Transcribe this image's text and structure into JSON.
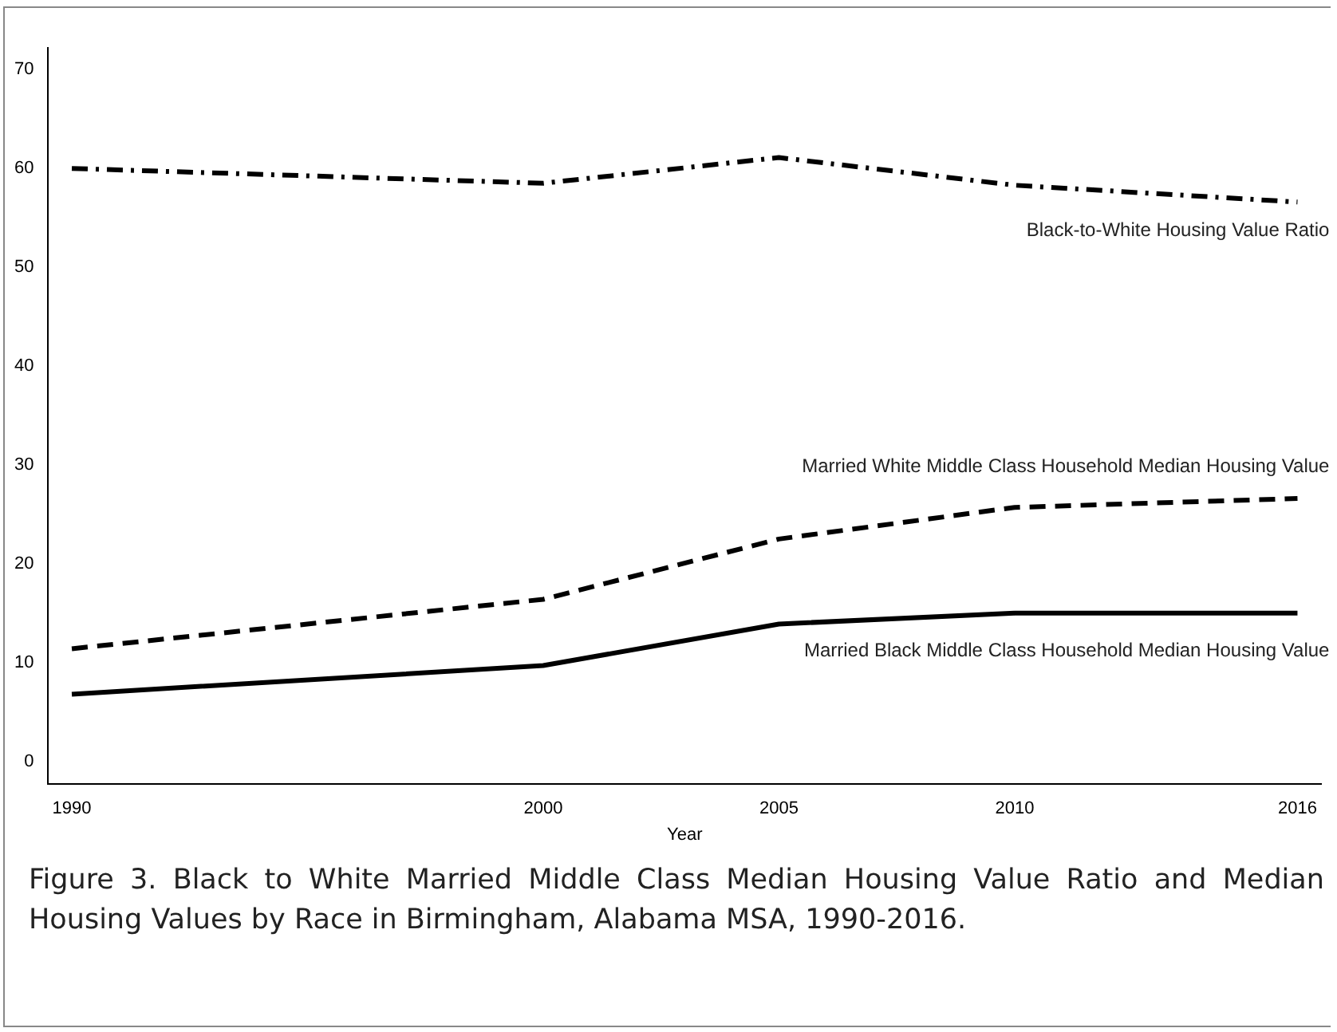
{
  "chart_data": {
    "type": "line",
    "xlabel": "Year",
    "x": [
      1990,
      2000,
      2005,
      2010,
      2016
    ],
    "xlim": [
      1989.5,
      2016.5
    ],
    "xticks": [
      1990,
      2000,
      2005,
      2010,
      2016
    ],
    "ylim": [
      -2.3,
      72.2
    ],
    "yticks": [
      0,
      10,
      20,
      30,
      40,
      50,
      60,
      70
    ],
    "grid": false,
    "legend": false,
    "marker": "none",
    "series": [
      {
        "name": "Black-to-White Housing Value Ratio",
        "color": "#000000",
        "line_style": "dashdot",
        "values": [
          60.0,
          58.5,
          61.1,
          58.3,
          56.6
        ]
      },
      {
        "name": "Married White Middle Class Household Median Housing Value",
        "color": "#000000",
        "line_style": "dashed",
        "values": [
          11.4,
          16.4,
          22.5,
          25.7,
          26.6
        ]
      },
      {
        "name": "Married Black Middle Class Household Median Housing Value",
        "color": "#000000",
        "line_style": "solid",
        "values": [
          6.8,
          9.7,
          13.9,
          15.0,
          15.0
        ]
      }
    ],
    "annotations": [
      "Figure 3. Black to White Married Middle Class Median Housing Value Ratio and Median Housing Values by Race in Birmingham, Alabama MSA, 1990-2016."
    ]
  }
}
